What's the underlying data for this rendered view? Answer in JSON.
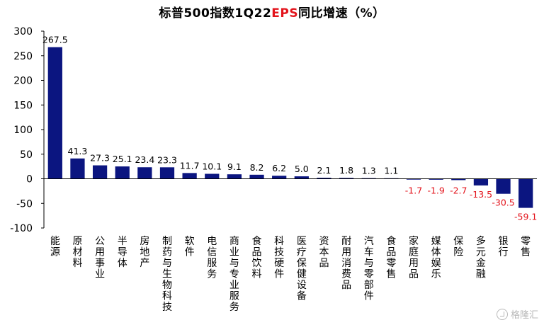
{
  "title": {
    "prefix": "标普500指数1Q22",
    "highlight": "EPS",
    "suffix": "同比增速（%）"
  },
  "watermark": "格隆汇",
  "chart_data": {
    "type": "bar",
    "title": "标普500指数1Q22EPS同比增速（%）",
    "categories": [
      "能源",
      "原材料",
      "公用事业",
      "半导体",
      "房地产",
      "制药与生物科技",
      "软件",
      "电信服务",
      "商业与专业服务",
      "食品饮料",
      "科技硬件",
      "医疗保健设备",
      "资本品",
      "耐用消费品",
      "汽车与零部件",
      "食品零售",
      "家庭用品",
      "媒体娱乐",
      "保险",
      "多元金融",
      "银行",
      "零售"
    ],
    "values": [
      267.5,
      41.3,
      27.3,
      25.1,
      23.4,
      23.3,
      11.7,
      10.1,
      9.1,
      8.2,
      6.2,
      5.0,
      2.1,
      1.8,
      1.3,
      1.1,
      -1.7,
      -1.9,
      -2.7,
      -13.5,
      -30.5,
      -59.1
    ],
    "value_labels": [
      "267.5",
      "41.3",
      "27.3",
      "25.1",
      "23.4",
      "23.3",
      "11.7",
      "10.1",
      "9.1",
      "8.2",
      "6.2",
      "5.0",
      "2.1",
      "1.8",
      "1.3",
      "1.1",
      "-1.7",
      "-1.9",
      "-2.7",
      "-13.5",
      "-30.5",
      "-59.1"
    ],
    "ylim": [
      -100,
      300
    ],
    "yticks": [
      "300",
      "250",
      "200",
      "150",
      "100",
      "50",
      "0",
      "-50",
      "-100"
    ],
    "ytick_values": [
      300,
      250,
      200,
      150,
      100,
      50,
      0,
      -50,
      -100
    ],
    "grid": false,
    "colors": {
      "bar": "#0b1580",
      "positive_label": "#000000",
      "negative_label": "#e3141c"
    }
  }
}
